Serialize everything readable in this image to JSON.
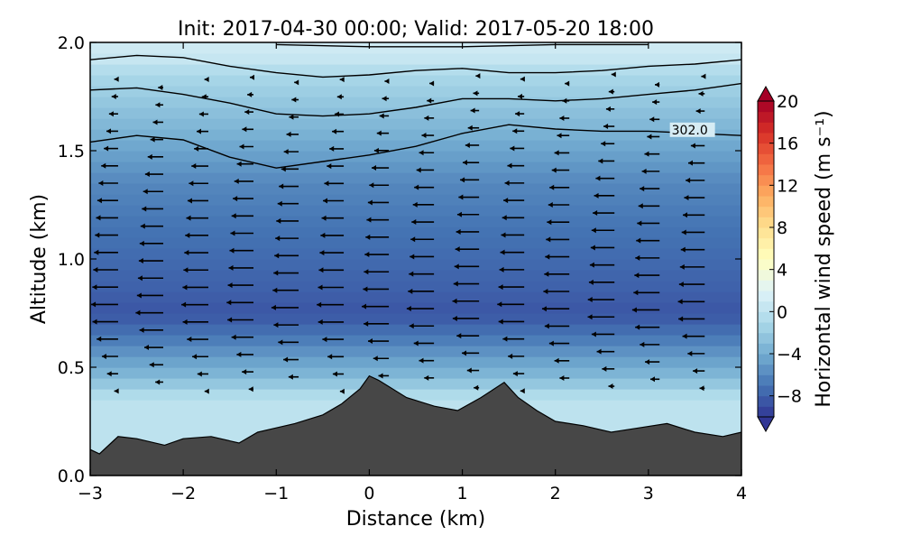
{
  "chart_data": {
    "type": "heatmap",
    "title": "Init: 2017-04-30 00:00; Valid: 2017-05-20 18:00",
    "xlabel": "Distance (km)",
    "ylabel": "Altitude (km)",
    "xlim": [
      -3,
      4
    ],
    "ylim": [
      0,
      2
    ],
    "x_ticks": [
      -3,
      -2,
      -1,
      0,
      1,
      2,
      3,
      4
    ],
    "x_tick_labels": [
      "−3",
      "−2",
      "−1",
      "0",
      "1",
      "2",
      "3",
      "4"
    ],
    "y_ticks": [
      0.0,
      0.5,
      1.0,
      1.5,
      2.0
    ],
    "y_tick_labels": [
      "0.0",
      "0.5",
      "1.0",
      "1.5",
      "2.0"
    ],
    "colorbar": {
      "label": "Horizontal wind speed (m s⁻¹)",
      "range": [
        -10,
        20
      ],
      "extend": "both",
      "ticks": [
        -8,
        -4,
        0,
        4,
        8,
        12,
        16,
        20
      ],
      "tick_labels": [
        "−8",
        "−4",
        "0",
        "4",
        "8",
        "12",
        "16",
        "20"
      ],
      "colors": [
        "#313695",
        "#4575b4",
        "#74add1",
        "#abd9e9",
        "#e0f3f8",
        "#ffffbf",
        "#fee090",
        "#fdae61",
        "#f46d43",
        "#d73027",
        "#a50026"
      ]
    },
    "wind_levels": [
      {
        "altitude": 1.95,
        "speed": 1
      },
      {
        "altitude": 1.85,
        "speed": -1
      },
      {
        "altitude": 1.75,
        "speed": -2
      },
      {
        "altitude": 1.65,
        "speed": -3
      },
      {
        "altitude": 1.55,
        "speed": -4
      },
      {
        "altitude": 1.45,
        "speed": -5
      },
      {
        "altitude": 1.35,
        "speed": -6
      },
      {
        "altitude": 1.25,
        "speed": -6.5
      },
      {
        "altitude": 1.15,
        "speed": -7
      },
      {
        "altitude": 1.0,
        "speed": -7.5
      },
      {
        "altitude": 0.85,
        "speed": -8
      },
      {
        "altitude": 0.75,
        "speed": -8.5
      },
      {
        "altitude": 0.65,
        "speed": -7
      },
      {
        "altitude": 0.55,
        "speed": -5
      },
      {
        "altitude": 0.45,
        "speed": -3
      },
      {
        "altitude": 0.35,
        "speed": 0
      }
    ],
    "terrain_profile": {
      "x": [
        -3.0,
        -2.9,
        -2.7,
        -2.5,
        -2.2,
        -2.0,
        -1.7,
        -1.4,
        -1.2,
        -1.0,
        -0.8,
        -0.5,
        -0.3,
        -0.1,
        0.0,
        0.1,
        0.4,
        0.7,
        0.95,
        1.2,
        1.45,
        1.6,
        1.8,
        2.0,
        2.3,
        2.6,
        2.9,
        3.2,
        3.5,
        3.8,
        4.0
      ],
      "altitude": [
        0.12,
        0.1,
        0.18,
        0.17,
        0.14,
        0.17,
        0.18,
        0.15,
        0.2,
        0.22,
        0.24,
        0.28,
        0.33,
        0.4,
        0.46,
        0.44,
        0.36,
        0.32,
        0.3,
        0.36,
        0.43,
        0.36,
        0.3,
        0.25,
        0.23,
        0.2,
        0.22,
        0.24,
        0.2,
        0.18,
        0.2
      ]
    },
    "isentropes": [
      {
        "x": [
          -3.0,
          -2.5,
          -2.0,
          -1.5,
          -1.0,
          -0.5,
          0.0,
          0.5,
          1.0,
          1.5,
          2.0,
          2.5,
          3.0,
          3.5,
          4.0
        ],
        "altitude": [
          1.54,
          1.57,
          1.55,
          1.47,
          1.42,
          1.45,
          1.48,
          1.52,
          1.58,
          1.62,
          1.6,
          1.59,
          1.59,
          1.58,
          1.57
        ]
      },
      {
        "x": [
          -3.0,
          -2.5,
          -2.0,
          -1.5,
          -1.0,
          -0.5,
          0.0,
          0.5,
          1.0,
          1.5,
          2.0,
          2.5,
          3.0,
          3.5,
          4.0
        ],
        "altitude": [
          1.78,
          1.79,
          1.76,
          1.72,
          1.67,
          1.66,
          1.67,
          1.7,
          1.74,
          1.74,
          1.73,
          1.74,
          1.76,
          1.78,
          1.81
        ]
      },
      {
        "x": [
          -3.0,
          -2.5,
          -2.0,
          -1.5,
          -1.0,
          -0.5,
          0.0,
          0.5,
          1.0,
          1.5,
          2.0,
          2.5,
          3.0,
          3.5,
          4.0
        ],
        "altitude": [
          1.92,
          1.94,
          1.93,
          1.89,
          1.86,
          1.84,
          1.85,
          1.87,
          1.88,
          1.86,
          1.86,
          1.87,
          1.89,
          1.9,
          1.92
        ]
      },
      {
        "x": [
          -1.0,
          0.0,
          1.0,
          2.0,
          3.0
        ],
        "altitude": [
          1.99,
          1.98,
          1.98,
          1.99,
          1.99
        ]
      }
    ],
    "contour_labels": [
      {
        "text": "302.0",
        "x": 3.25,
        "altitude": 1.58
      }
    ]
  }
}
